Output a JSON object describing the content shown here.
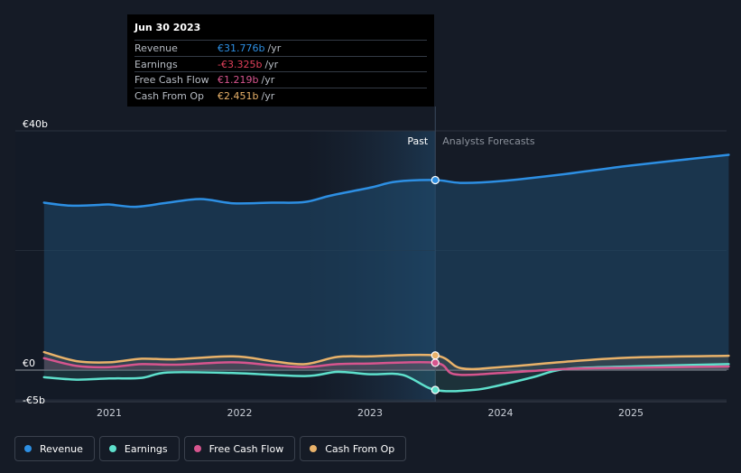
{
  "chart_data": {
    "type": "line",
    "title": "",
    "x_labels": [
      "2021",
      "2022",
      "2023",
      "2024",
      "2025"
    ],
    "y_ticks": [
      {
        "label": "€40b",
        "value": 40
      },
      {
        "label": "€0",
        "value": 0
      },
      {
        "label": "-€5b",
        "value": -5
      }
    ],
    "ylim": [
      -5,
      40
    ],
    "xlim": [
      2020.5,
      2025.75
    ],
    "divider_x": 2023.5,
    "past_label": "Past",
    "forecast_label": "Analysts Forecasts",
    "series": [
      {
        "key": "revenue",
        "name": "Revenue",
        "color": "#2d8fe3",
        "points": [
          [
            2020.5,
            28.0
          ],
          [
            2020.7,
            27.5
          ],
          [
            2020.9,
            27.6
          ],
          [
            2021.0,
            27.7
          ],
          [
            2021.2,
            27.3
          ],
          [
            2021.45,
            28.0
          ],
          [
            2021.7,
            28.6
          ],
          [
            2021.95,
            27.9
          ],
          [
            2022.25,
            28.0
          ],
          [
            2022.5,
            28.1
          ],
          [
            2022.7,
            29.2
          ],
          [
            2023.0,
            30.5
          ],
          [
            2023.2,
            31.5
          ],
          [
            2023.5,
            31.776
          ],
          [
            2023.7,
            31.3
          ],
          [
            2024.0,
            31.6
          ],
          [
            2024.5,
            32.8
          ],
          [
            2025.0,
            34.2
          ],
          [
            2025.75,
            36.0
          ]
        ]
      },
      {
        "key": "earnings",
        "name": "Earnings",
        "color": "#5ee0cc",
        "points": [
          [
            2020.5,
            -1.2
          ],
          [
            2020.75,
            -1.6
          ],
          [
            2021.0,
            -1.4
          ],
          [
            2021.25,
            -1.3
          ],
          [
            2021.45,
            -0.4
          ],
          [
            2021.95,
            -0.5
          ],
          [
            2022.5,
            -1.0
          ],
          [
            2022.75,
            -0.3
          ],
          [
            2023.0,
            -0.7
          ],
          [
            2023.25,
            -0.8
          ],
          [
            2023.5,
            -3.325
          ],
          [
            2023.8,
            -3.3
          ],
          [
            2024.0,
            -2.5
          ],
          [
            2024.25,
            -1.2
          ],
          [
            2024.5,
            0.2
          ],
          [
            2025.0,
            0.6
          ],
          [
            2025.75,
            1.0
          ]
        ]
      },
      {
        "key": "fcf",
        "name": "Free Cash Flow",
        "color": "#d6558e",
        "points": [
          [
            2020.5,
            2.0
          ],
          [
            2020.75,
            0.7
          ],
          [
            2021.0,
            0.5
          ],
          [
            2021.25,
            1.0
          ],
          [
            2021.5,
            0.9
          ],
          [
            2021.95,
            1.3
          ],
          [
            2022.25,
            0.8
          ],
          [
            2022.5,
            0.5
          ],
          [
            2022.75,
            1.0
          ],
          [
            2023.0,
            1.1
          ],
          [
            2023.5,
            1.219
          ],
          [
            2023.65,
            -0.7
          ],
          [
            2024.0,
            -0.5
          ],
          [
            2024.5,
            0.2
          ],
          [
            2025.0,
            0.4
          ],
          [
            2025.75,
            0.6
          ]
        ]
      },
      {
        "key": "cfo",
        "name": "Cash From Op",
        "color": "#e9b26a",
        "points": [
          [
            2020.5,
            3.0
          ],
          [
            2020.75,
            1.5
          ],
          [
            2021.0,
            1.3
          ],
          [
            2021.25,
            1.9
          ],
          [
            2021.5,
            1.8
          ],
          [
            2021.95,
            2.3
          ],
          [
            2022.25,
            1.5
          ],
          [
            2022.5,
            1.0
          ],
          [
            2022.75,
            2.2
          ],
          [
            2023.0,
            2.3
          ],
          [
            2023.5,
            2.451
          ],
          [
            2023.7,
            0.3
          ],
          [
            2024.0,
            0.5
          ],
          [
            2024.5,
            1.4
          ],
          [
            2025.0,
            2.1
          ],
          [
            2025.75,
            2.4
          ]
        ]
      }
    ]
  },
  "tooltip": {
    "date": "Jun 30 2023",
    "unit": "/yr",
    "rows": [
      {
        "label": "Revenue",
        "value": "€31.776b",
        "color": "#2d8fe3"
      },
      {
        "label": "Earnings",
        "value": "-€3.325b",
        "color": "#e0405a"
      },
      {
        "label": "Free Cash Flow",
        "value": "€1.219b",
        "color": "#d6558e"
      },
      {
        "label": "Cash From Op",
        "value": "€2.451b",
        "color": "#e9b26a"
      }
    ]
  },
  "legend": [
    {
      "label": "Revenue",
      "color": "#2d8fe3"
    },
    {
      "label": "Earnings",
      "color": "#5ee0cc"
    },
    {
      "label": "Free Cash Flow",
      "color": "#d6558e"
    },
    {
      "label": "Cash From Op",
      "color": "#e9b26a"
    }
  ]
}
